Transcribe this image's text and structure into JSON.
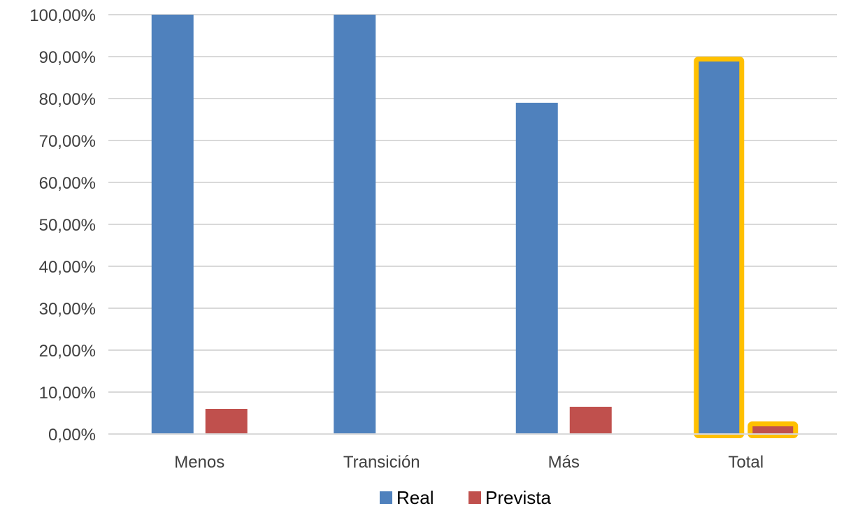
{
  "chart_data": {
    "type": "bar",
    "categories": [
      "Menos",
      "Transición",
      "Más",
      "Total"
    ],
    "series": [
      {
        "name": "Real",
        "color": "#4F81BD",
        "values": [
          100,
          100,
          79,
          89
        ]
      },
      {
        "name": "Prevista",
        "color": "#C0504D",
        "values": [
          6,
          0,
          6.5,
          2
        ]
      }
    ],
    "ylim": [
      0,
      100
    ],
    "y_ticks": [
      "0,00%",
      "10,00%",
      "20,00%",
      "30,00%",
      "40,00%",
      "50,00%",
      "60,00%",
      "70,00%",
      "80,00%",
      "90,00%",
      "100,00%"
    ],
    "grid": true,
    "legend_position": "bottom",
    "highlight": {
      "category": "Total",
      "color": "#FFC000"
    }
  }
}
